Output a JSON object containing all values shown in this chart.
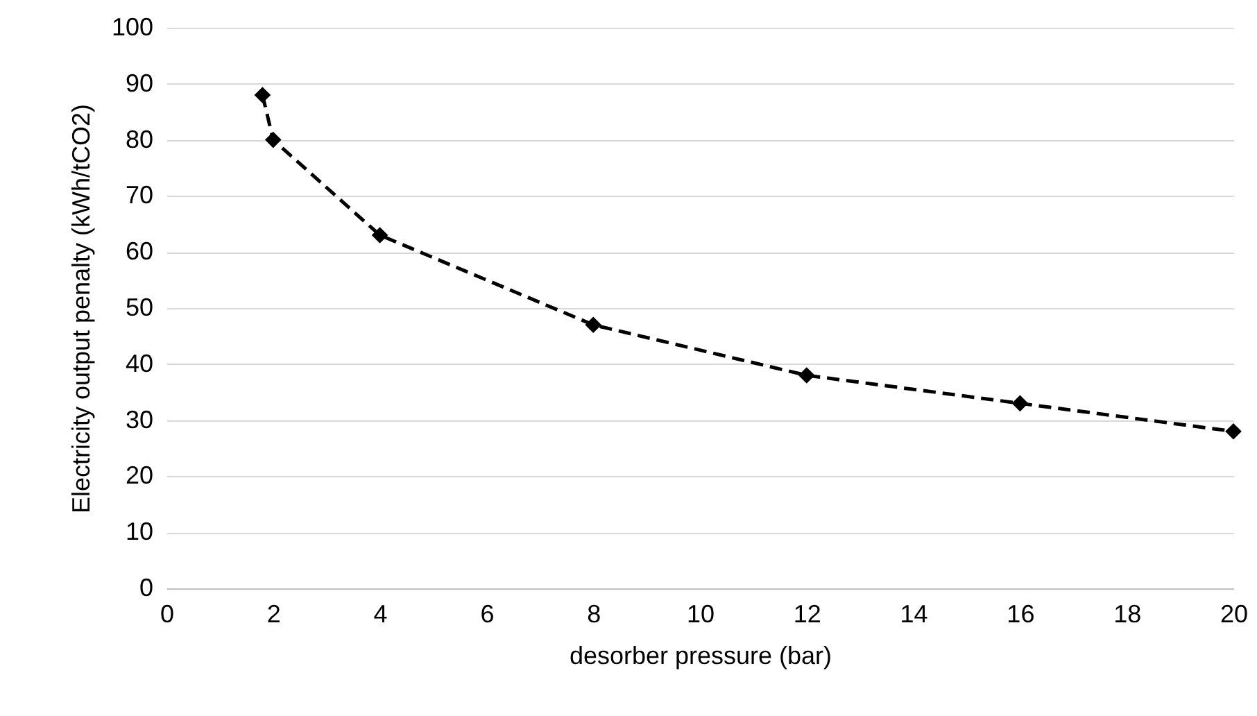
{
  "chart_data": {
    "type": "line",
    "xlabel": "desorber pressure (bar)",
    "ylabel": "Electricity output penalty (kWh/tCO2)",
    "x": [
      1.8,
      2,
      4,
      8,
      12,
      16,
      20
    ],
    "series": [
      {
        "color": "#000000",
        "values": [
          88,
          80,
          63,
          47,
          38,
          33,
          28
        ]
      }
    ],
    "xlim": [
      0,
      20
    ],
    "xticks": [
      0,
      2,
      4,
      6,
      8,
      10,
      12,
      14,
      16,
      18,
      20
    ],
    "ylim": [
      0,
      100
    ],
    "yticks": [
      0,
      10,
      20,
      30,
      40,
      50,
      60,
      70,
      80,
      90,
      100
    ],
    "grid": "y",
    "marker": "diamond",
    "line_style": "dashed"
  }
}
